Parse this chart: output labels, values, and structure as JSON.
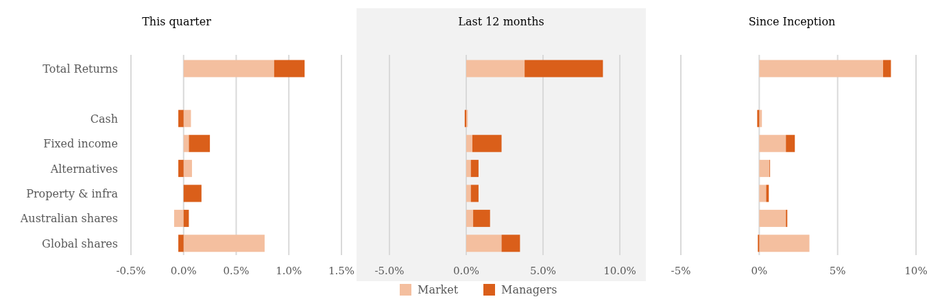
{
  "chart_data": [
    {
      "type": "bar",
      "orientation": "horizontal",
      "stacked": true,
      "title": "This quarter",
      "categories": [
        "Total Returns",
        null,
        "Cash",
        "Fixed income",
        "Alternatives",
        "Property & infra",
        "Australian shares",
        "Global shares"
      ],
      "series": [
        {
          "color": "#f4bf9f",
          "values": [
            0.86,
            null,
            0.07,
            0.05,
            0.08,
            0,
            -0.09,
            0.77
          ]
        },
        {
          "color": "#da5f1a",
          "values": [
            0.29,
            null,
            -0.05,
            0.2,
            -0.05,
            0.17,
            0.05,
            -0.05
          ]
        }
      ],
      "xlim": [
        -0.5,
        1.5
      ],
      "xticks": [
        {
          "value": -0.5,
          "label": "-0.5%"
        },
        {
          "value": 0,
          "label": "0.0%"
        },
        {
          "value": 0.5,
          "label": "0.5%"
        },
        {
          "value": 1,
          "label": "1.0%"
        },
        {
          "value": 1.5,
          "label": "1.5%"
        }
      ],
      "grid": "x"
    },
    {
      "type": "bar",
      "orientation": "horizontal",
      "stacked": true,
      "title": "Last 12 months",
      "categories": [
        null,
        null,
        null,
        null,
        null,
        null,
        null,
        null
      ],
      "series": [
        {
          "name": "Market",
          "color": "#f4bf9f",
          "values": [
            3.8,
            null,
            0.1,
            0.4,
            0.3,
            0.3,
            0.45,
            2.3
          ]
        },
        {
          "name": "Managers",
          "color": "#da5f1a",
          "values": [
            5.1,
            null,
            -0.1,
            1.9,
            0.5,
            0.5,
            1.1,
            1.2
          ]
        }
      ],
      "xlim": [
        -5,
        10
      ],
      "xticks": [
        {
          "value": -5,
          "label": "-5.0%"
        },
        {
          "value": 0,
          "label": "0.0%"
        },
        {
          "value": 5,
          "label": "5.0%"
        },
        {
          "value": 10,
          "label": "10.0%"
        }
      ],
      "grid": "x",
      "legend": "bottom"
    },
    {
      "type": "bar",
      "orientation": "horizontal",
      "stacked": true,
      "title": "Since Inception",
      "categories": [
        null,
        null,
        null,
        null,
        null,
        null,
        null,
        null
      ],
      "series": [
        {
          "color": "#f4bf9f",
          "values": [
            7.9,
            null,
            0.17,
            1.7,
            0.65,
            0.44,
            1.7,
            3.2
          ]
        },
        {
          "color": "#da5f1a",
          "values": [
            0.5,
            null,
            -0.13,
            0.57,
            0.04,
            0.17,
            0.09,
            -0.09
          ]
        }
      ],
      "xlim": [
        -5,
        10
      ],
      "xticks": [
        {
          "value": -5,
          "label": "-5%"
        },
        {
          "value": 0,
          "label": "0%"
        },
        {
          "value": 5,
          "label": "5%"
        },
        {
          "value": 10,
          "label": "10%"
        }
      ],
      "grid": "x"
    }
  ]
}
